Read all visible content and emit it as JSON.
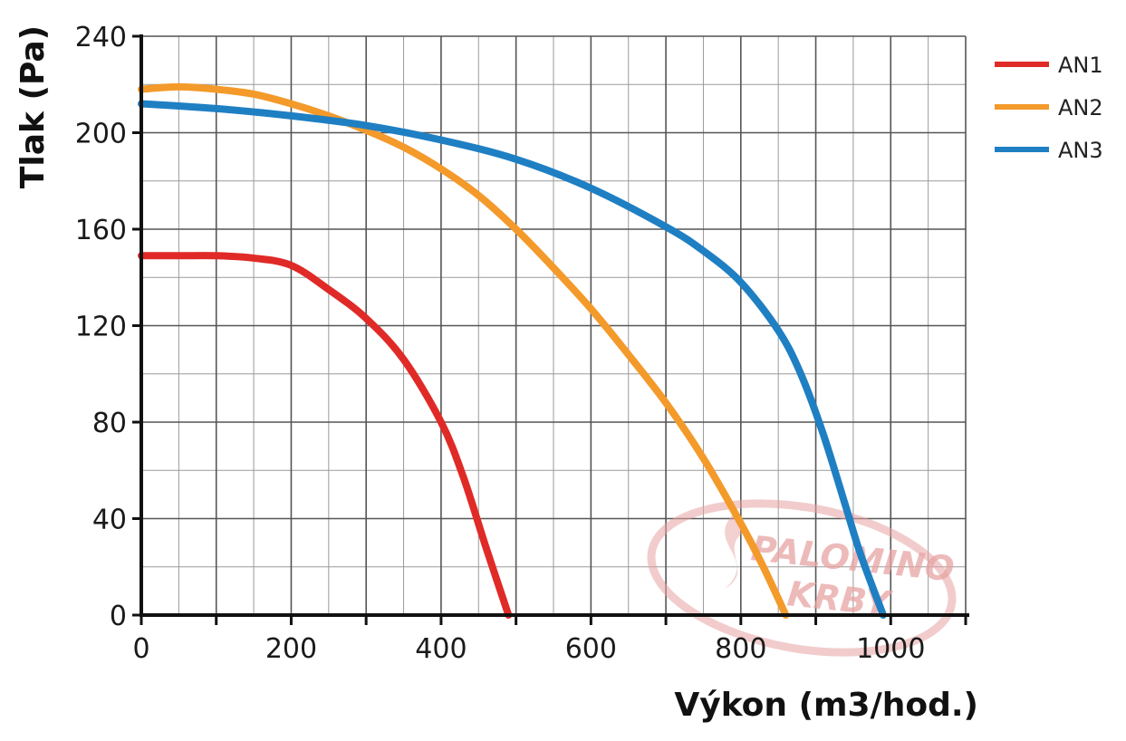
{
  "chart_data": {
    "type": "line",
    "title": "",
    "xlabel": "Výkon (m3/hod.)",
    "ylabel": "Tlak (Pa)",
    "xlim": [
      0,
      1100
    ],
    "ylim": [
      0,
      240
    ],
    "x_ticks": [
      0,
      200,
      400,
      600,
      800,
      1000
    ],
    "y_ticks": [
      0,
      40,
      80,
      120,
      160,
      200,
      240
    ],
    "grid": true,
    "legend_position": "top-right",
    "series": [
      {
        "name": "AN1",
        "color": "#e02a27",
        "x": [
          0,
          50,
          100,
          150,
          200,
          250,
          300,
          350,
          400,
          430,
          460,
          490
        ],
        "y": [
          149,
          149,
          149,
          148,
          145,
          135,
          123,
          106,
          80,
          57,
          28,
          0
        ]
      },
      {
        "name": "AN2",
        "color": "#f39a2b",
        "x": [
          0,
          50,
          100,
          150,
          200,
          250,
          300,
          350,
          400,
          450,
          500,
          550,
          600,
          650,
          700,
          750,
          800,
          830,
          860
        ],
        "y": [
          218,
          219,
          218,
          216,
          212,
          207,
          201,
          194,
          185,
          174,
          160,
          144,
          127,
          108,
          88,
          65,
          38,
          20,
          0
        ]
      },
      {
        "name": "AN3",
        "color": "#1f7fc3",
        "x": [
          0,
          100,
          200,
          300,
          400,
          500,
          600,
          700,
          750,
          800,
          850,
          880,
          910,
          940,
          960,
          990
        ],
        "y": [
          212,
          210,
          207,
          203,
          197,
          189,
          177,
          161,
          151,
          138,
          118,
          100,
          75,
          45,
          25,
          0
        ]
      }
    ]
  },
  "watermark": {
    "line1": "PALOMINO",
    "line2": "KRBY",
    "color": "#e8a3a3"
  }
}
